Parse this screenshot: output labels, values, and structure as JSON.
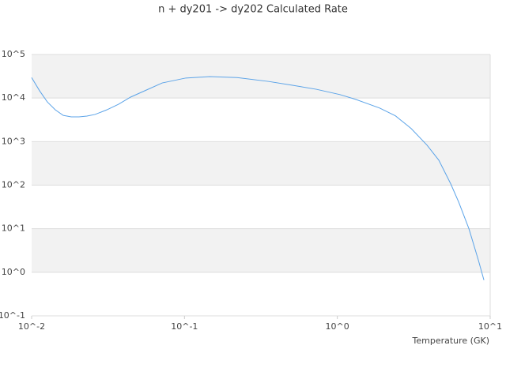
{
  "chart_data": {
    "type": "line",
    "title": "n + dy201 -> dy202 Calculated Rate",
    "x_label": "Temperature (GK)",
    "xscale": "log",
    "yscale": "log",
    "grid": true,
    "band_color": "#f2f2f2",
    "xlim": [
      0.01,
      10
    ],
    "ylim": [
      0.1,
      100000
    ],
    "xticks": [
      {
        "value": 0.01,
        "label": "10^-2"
      },
      {
        "value": 0.1,
        "label": "10^-1"
      },
      {
        "value": 1,
        "label": "10^0"
      },
      {
        "value": 10,
        "label": "10^1"
      }
    ],
    "yticks": [
      {
        "value": 0.1,
        "label": "10^-1"
      },
      {
        "value": 1,
        "label": "10^0"
      },
      {
        "value": 10,
        "label": "10^1"
      },
      {
        "value": 100,
        "label": "10^2"
      },
      {
        "value": 1000,
        "label": "10^3"
      },
      {
        "value": 10000,
        "label": "10^4"
      },
      {
        "value": 100000,
        "label": "10^5"
      }
    ],
    "x": [
      0.01,
      0.01127,
      0.01268,
      0.01429,
      0.0161,
      0.01816,
      0.0204,
      0.023,
      0.026,
      0.031,
      0.037,
      0.0444,
      0.0562,
      0.0715,
      0.102,
      0.146,
      0.221,
      0.356,
      0.509,
      0.728,
      1.04,
      1.32,
      1.89,
      2.4,
      3.04,
      3.86,
      4.61,
      5.52,
      6.22,
      7.26,
      8.37,
      9.1
    ],
    "series": [
      {
        "color": "#5ba3e8",
        "values": [
          29500,
          14700,
          8100,
          5350,
          4000,
          3700,
          3700,
          3860,
          4200,
          5350,
          7200,
          10500,
          15200,
          22200,
          28800,
          31000,
          29500,
          24000,
          19600,
          15900,
          12000,
          9300,
          5900,
          3900,
          2000,
          830,
          375,
          107,
          41,
          10,
          1.9,
          0.66
        ]
      }
    ]
  }
}
